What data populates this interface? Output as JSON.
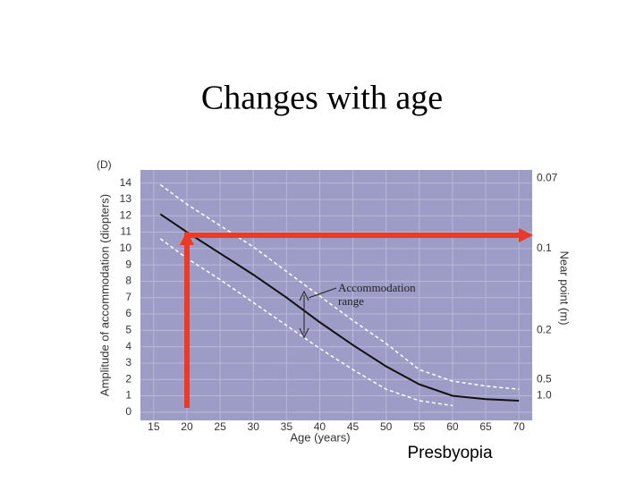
{
  "title": "Changes with age",
  "caption": "Presbyopia",
  "chart_data": {
    "type": "line",
    "y_unit_label": "(D)",
    "ylabel": "Amplitude of accommodation (diopters)",
    "xlabel": "Age (years)",
    "y2label": "Near point (m)",
    "annotation_lines": [
      "Accommodation",
      "range"
    ],
    "x": [
      16,
      20,
      25,
      30,
      35,
      40,
      45,
      50,
      55,
      60,
      65,
      70
    ],
    "series": [
      {
        "color": "#111111",
        "dashed": false,
        "values": [
          12.1,
          11,
          9.7,
          8.4,
          7,
          5.5,
          4.1,
          2.8,
          1.7,
          1.0,
          0.8,
          0.7
        ]
      },
      {
        "color": "#ffffff",
        "dashed": true,
        "values": [
          13.9,
          12.7,
          11.4,
          10.1,
          8.6,
          7.1,
          5.6,
          4.2,
          2.6,
          1.9,
          1.6,
          1.4
        ]
      },
      {
        "color": "#ffffff",
        "dashed": true,
        "values": [
          10.6,
          9.4,
          8.1,
          6.7,
          5.3,
          3.9,
          2.6,
          1.4,
          0.7,
          0.4,
          null,
          null
        ]
      }
    ],
    "xlim": [
      13,
      72
    ],
    "xticks": [
      15,
      20,
      25,
      30,
      35,
      40,
      45,
      50,
      55,
      60,
      65,
      70
    ],
    "ylim": [
      -0.5,
      14.8
    ],
    "yticks": [
      0,
      1,
      2,
      3,
      4,
      5,
      6,
      7,
      8,
      9,
      10,
      11,
      12,
      13,
      14
    ],
    "y2scale": "reciprocal",
    "y2ticks": [
      0.07,
      0.1,
      0.2,
      0.5,
      {
        "value": 1,
        "label": "1.0"
      }
    ],
    "grid": true,
    "background": "#9c9cc6"
  }
}
